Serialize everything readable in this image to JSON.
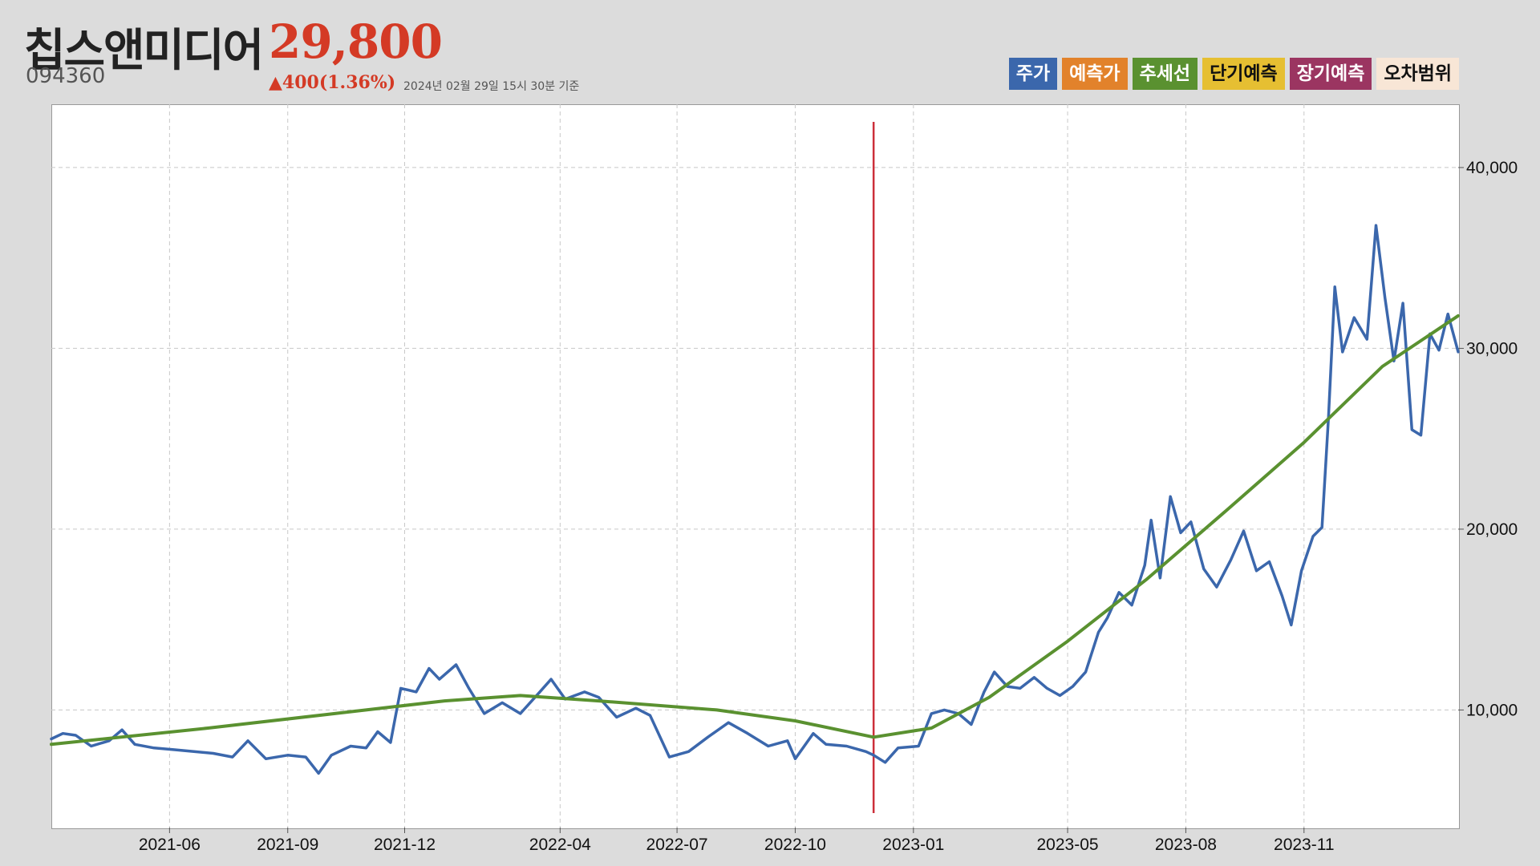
{
  "header": {
    "name": "칩스앤미디어",
    "code": "094360",
    "price": "29,800",
    "change": "▲400(1.36%)",
    "timestamp": "2024년 02월 29일 15시 30분 기준"
  },
  "legend": [
    {
      "label": "주가",
      "color": "#3b67ac",
      "text_color": "#ffffff"
    },
    {
      "label": "예측가",
      "color": "#e2822b",
      "text_color": "#ffffff"
    },
    {
      "label": "추세선",
      "color": "#5a9130",
      "text_color": "#ffffff"
    },
    {
      "label": "단기예측",
      "color": "#e6bf32",
      "text_color": "#111111"
    },
    {
      "label": "장기예측",
      "color": "#9b3561",
      "text_color": "#ffffff"
    },
    {
      "label": "오차범위",
      "color": "#f8e6d6",
      "text_color": "#111111"
    }
  ],
  "chart_data": {
    "type": "line",
    "title": "",
    "xlabel": "",
    "ylabel": "",
    "x_range": [
      "2021-03-01",
      "2024-02-29"
    ],
    "ylim": [
      3500,
      43500
    ],
    "y_ticks": [
      {
        "value": 10000,
        "label": "10,000"
      },
      {
        "value": 20000,
        "label": "20,000"
      },
      {
        "value": 30000,
        "label": "30,000"
      },
      {
        "value": 40000,
        "label": "40,000"
      }
    ],
    "x_ticks": [
      {
        "date": "2021-06-01",
        "label": "2021-06"
      },
      {
        "date": "2021-09-01",
        "label": "2021-09"
      },
      {
        "date": "2021-12-01",
        "label": "2021-12"
      },
      {
        "date": "2022-04-01",
        "label": "2022-04"
      },
      {
        "date": "2022-07-01",
        "label": "2022-07"
      },
      {
        "date": "2022-10-01",
        "label": "2022-10"
      },
      {
        "date": "2023-01-01",
        "label": "2023-01"
      },
      {
        "date": "2023-05-01",
        "label": "2023-05"
      },
      {
        "date": "2023-08-01",
        "label": "2023-08"
      },
      {
        "date": "2023-11-01",
        "label": "2023-11"
      }
    ],
    "grid": true,
    "legend_position": "top-right",
    "marker_line": {
      "date": "2022-12-01",
      "color": "#cc2f3a"
    },
    "series": [
      {
        "name": "주가",
        "color": "#3b67ac",
        "points": [
          [
            "2021-03-01",
            8400
          ],
          [
            "2021-03-10",
            8700
          ],
          [
            "2021-03-20",
            8600
          ],
          [
            "2021-04-01",
            8000
          ],
          [
            "2021-04-15",
            8300
          ],
          [
            "2021-04-25",
            8900
          ],
          [
            "2021-05-05",
            8100
          ],
          [
            "2021-05-20",
            7900
          ],
          [
            "2021-06-05",
            7800
          ],
          [
            "2021-06-20",
            7700
          ],
          [
            "2021-07-05",
            7600
          ],
          [
            "2021-07-20",
            7400
          ],
          [
            "2021-08-01",
            8300
          ],
          [
            "2021-08-15",
            7300
          ],
          [
            "2021-09-01",
            7500
          ],
          [
            "2021-09-15",
            7400
          ],
          [
            "2021-09-25",
            6500
          ],
          [
            "2021-10-05",
            7500
          ],
          [
            "2021-10-20",
            8000
          ],
          [
            "2021-11-01",
            7900
          ],
          [
            "2021-11-10",
            8800
          ],
          [
            "2021-11-20",
            8200
          ],
          [
            "2021-11-28",
            11200
          ],
          [
            "2021-12-10",
            11000
          ],
          [
            "2021-12-20",
            12300
          ],
          [
            "2021-12-28",
            11700
          ],
          [
            "2022-01-10",
            12500
          ],
          [
            "2022-01-20",
            11200
          ],
          [
            "2022-02-01",
            9800
          ],
          [
            "2022-02-15",
            10400
          ],
          [
            "2022-03-01",
            9800
          ],
          [
            "2022-03-15",
            10900
          ],
          [
            "2022-03-25",
            11700
          ],
          [
            "2022-04-05",
            10600
          ],
          [
            "2022-04-20",
            11000
          ],
          [
            "2022-05-01",
            10700
          ],
          [
            "2022-05-15",
            9600
          ],
          [
            "2022-05-30",
            10100
          ],
          [
            "2022-06-10",
            9700
          ],
          [
            "2022-06-25",
            7400
          ],
          [
            "2022-07-10",
            7700
          ],
          [
            "2022-07-25",
            8500
          ],
          [
            "2022-08-10",
            9300
          ],
          [
            "2022-08-25",
            8700
          ],
          [
            "2022-09-10",
            8000
          ],
          [
            "2022-09-25",
            8300
          ],
          [
            "2022-10-01",
            7300
          ],
          [
            "2022-10-15",
            8700
          ],
          [
            "2022-10-25",
            8100
          ],
          [
            "2022-11-10",
            8000
          ],
          [
            "2022-11-25",
            7700
          ],
          [
            "2022-12-01",
            7500
          ],
          [
            "2022-12-10",
            7100
          ],
          [
            "2022-12-20",
            7900
          ],
          [
            "2023-01-05",
            8000
          ],
          [
            "2023-01-15",
            9800
          ],
          [
            "2023-01-25",
            10000
          ],
          [
            "2023-02-05",
            9800
          ],
          [
            "2023-02-15",
            9200
          ],
          [
            "2023-02-25",
            11000
          ],
          [
            "2023-03-05",
            12100
          ],
          [
            "2023-03-15",
            11300
          ],
          [
            "2023-03-25",
            11200
          ],
          [
            "2023-04-05",
            11800
          ],
          [
            "2023-04-15",
            11200
          ],
          [
            "2023-04-25",
            10800
          ],
          [
            "2023-05-05",
            11300
          ],
          [
            "2023-05-15",
            12100
          ],
          [
            "2023-05-25",
            14300
          ],
          [
            "2023-06-01",
            15100
          ],
          [
            "2023-06-10",
            16500
          ],
          [
            "2023-06-20",
            15800
          ],
          [
            "2023-06-30",
            18000
          ],
          [
            "2023-07-05",
            20500
          ],
          [
            "2023-07-12",
            17300
          ],
          [
            "2023-07-20",
            21800
          ],
          [
            "2023-07-28",
            19800
          ],
          [
            "2023-08-05",
            20400
          ],
          [
            "2023-08-15",
            17800
          ],
          [
            "2023-08-25",
            16800
          ],
          [
            "2023-09-05",
            18300
          ],
          [
            "2023-09-15",
            19900
          ],
          [
            "2023-09-25",
            17700
          ],
          [
            "2023-10-05",
            18200
          ],
          [
            "2023-10-15",
            16300
          ],
          [
            "2023-10-22",
            14700
          ],
          [
            "2023-10-30",
            17700
          ],
          [
            "2023-11-08",
            19600
          ],
          [
            "2023-11-15",
            20100
          ],
          [
            "2023-11-20",
            26100
          ],
          [
            "2023-11-25",
            33400
          ],
          [
            "2023-12-01",
            29800
          ],
          [
            "2023-12-10",
            31700
          ],
          [
            "2023-12-20",
            30500
          ],
          [
            "2023-12-27",
            36800
          ],
          [
            "2024-01-03",
            32800
          ],
          [
            "2024-01-10",
            29300
          ],
          [
            "2024-01-17",
            32500
          ],
          [
            "2024-01-24",
            25500
          ],
          [
            "2024-01-31",
            25200
          ],
          [
            "2024-02-07",
            30800
          ],
          [
            "2024-02-14",
            29900
          ],
          [
            "2024-02-21",
            31900
          ],
          [
            "2024-02-29",
            29800
          ]
        ]
      },
      {
        "name": "추세선",
        "color": "#5a9130",
        "points": [
          [
            "2021-03-01",
            8100
          ],
          [
            "2021-07-01",
            9000
          ],
          [
            "2021-11-01",
            10000
          ],
          [
            "2022-01-01",
            10500
          ],
          [
            "2022-03-01",
            10800
          ],
          [
            "2022-05-01",
            10500
          ],
          [
            "2022-08-01",
            10000
          ],
          [
            "2022-10-01",
            9400
          ],
          [
            "2022-12-01",
            8500
          ],
          [
            "2023-01-15",
            9000
          ],
          [
            "2023-03-01",
            10700
          ],
          [
            "2023-05-01",
            13800
          ],
          [
            "2023-07-01",
            17200
          ],
          [
            "2023-09-01",
            21000
          ],
          [
            "2023-11-01",
            24800
          ],
          [
            "2024-01-01",
            29000
          ],
          [
            "2024-02-29",
            31800
          ]
        ]
      }
    ]
  }
}
